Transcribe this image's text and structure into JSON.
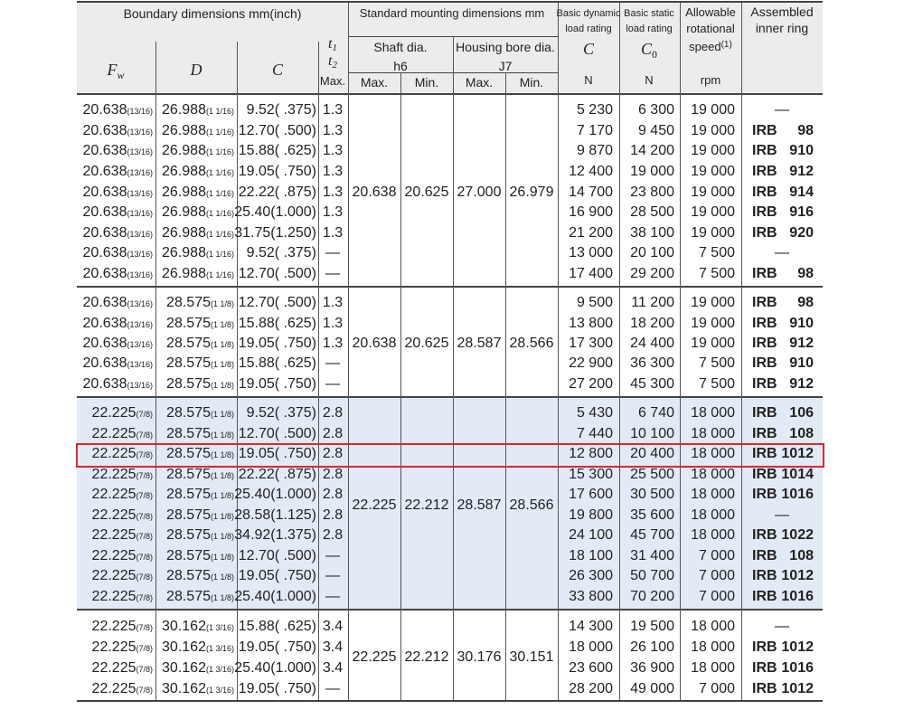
{
  "header": {
    "boundary": "Boundary dimensions   mm(inch)",
    "fw": "F",
    "fw_sub": "w",
    "d": "D",
    "c": "C",
    "t1": "t",
    "t1_sub": "1",
    "t2": "t",
    "t2_sub": "2",
    "t_max": "Max.",
    "mounting": "Standard mounting dimensions   mm",
    "shaft": "Shaft dia.",
    "shaft_tol": "h6",
    "housing": "Housing bore dia.",
    "housing_tol": "J7",
    "shaft_max": "Max.",
    "shaft_min": "Min.",
    "housing_max": "Max.",
    "housing_min": "Min.",
    "dyn": [
      "Basic dynamic",
      "load rating"
    ],
    "dyn_symbol": "C",
    "dyn_unit": "N",
    "stat": [
      "Basic static",
      "load rating"
    ],
    "stat_symbol": "C",
    "stat_sub": "0",
    "stat_unit": "N",
    "speed": [
      "Allowable",
      "rotational",
      "speed"
    ],
    "speed_note": "(1)",
    "speed_unit": "rpm",
    "ring": [
      "Assembled",
      "inner ring"
    ]
  },
  "groups": [
    {
      "mount": [
        "20.638",
        "20.625",
        "27.000",
        "26.979"
      ],
      "rows": [
        [
          "20.638",
          "(13/16)",
          "26.988",
          "(1 1/16)",
          "9.52( .375)",
          "1.3",
          "5 230",
          "6 300",
          "19 000",
          "—"
        ],
        [
          "20.638",
          "(13/16)",
          "26.988",
          "(1 1/16)",
          "12.70( .500)",
          "1.3",
          "7 170",
          "9 450",
          "19 000",
          [
            "IRB",
            "98"
          ]
        ],
        [
          "20.638",
          "(13/16)",
          "26.988",
          "(1 1/16)",
          "15.88( .625)",
          "1.3",
          "9 870",
          "14 200",
          "19 000",
          [
            "IRB",
            "910"
          ]
        ],
        [
          "20.638",
          "(13/16)",
          "26.988",
          "(1 1/16)",
          "19.05( .750)",
          "1.3",
          "12 400",
          "19 000",
          "19 000",
          [
            "IRB",
            "912"
          ]
        ],
        [
          "20.638",
          "(13/16)",
          "26.988",
          "(1 1/16)",
          "22.22( .875)",
          "1.3",
          "14 700",
          "23 800",
          "19 000",
          [
            "IRB",
            "914"
          ]
        ],
        [
          "20.638",
          "(13/16)",
          "26.988",
          "(1 1/16)",
          "25.40(1.000)",
          "1.3",
          "16 900",
          "28 500",
          "19 000",
          [
            "IRB",
            "916"
          ]
        ],
        [
          "20.638",
          "(13/16)",
          "26.988",
          "(1 1/16)",
          "31.75(1.250)",
          "1.3",
          "21 200",
          "38 100",
          "19 000",
          [
            "IRB",
            "920"
          ]
        ],
        [
          "20.638",
          "(13/16)",
          "26.988",
          "(1 1/16)",
          "9.52( .375)",
          "—",
          "13 000",
          "20 100",
          "7 500",
          "—"
        ],
        [
          "20.638",
          "(13/16)",
          "26.988",
          "(1 1/16)",
          "12.70( .500)",
          "—",
          "17 400",
          "29 200",
          "7 500",
          [
            "IRB",
            "98"
          ]
        ]
      ]
    },
    {
      "mount": [
        "20.638",
        "20.625",
        "28.587",
        "28.566"
      ],
      "rows": [
        [
          "20.638",
          "(13/16)",
          "28.575",
          "(1 1/8)",
          "12.70( .500)",
          "1.3",
          "9 500",
          "11 200",
          "19 000",
          [
            "IRB",
            "98"
          ]
        ],
        [
          "20.638",
          "(13/16)",
          "28.575",
          "(1 1/8)",
          "15.88( .625)",
          "1.3",
          "13 800",
          "18 200",
          "19 000",
          [
            "IRB",
            "910"
          ]
        ],
        [
          "20.638",
          "(13/16)",
          "28.575",
          "(1 1/8)",
          "19.05( .750)",
          "1.3",
          "17 300",
          "24 400",
          "19 000",
          [
            "IRB",
            "912"
          ]
        ],
        [
          "20.638",
          "(13/16)",
          "28.575",
          "(1 1/8)",
          "15.88( .625)",
          "—",
          "22 900",
          "36 300",
          "7 500",
          [
            "IRB",
            "910"
          ]
        ],
        [
          "20.638",
          "(13/16)",
          "28.575",
          "(1 1/8)",
          "19.05( .750)",
          "—",
          "27 200",
          "45 300",
          "7 500",
          [
            "IRB",
            "912"
          ]
        ]
      ]
    },
    {
      "mount": [
        "22.225",
        "22.212",
        "28.587",
        "28.566"
      ],
      "rows": [
        [
          "22.225",
          "(7/8)",
          "28.575",
          "(1 1/8)",
          "9.52( .375)",
          "2.8",
          "5 430",
          "6 740",
          "18 000",
          [
            "IRB",
            "106"
          ]
        ],
        [
          "22.225",
          "(7/8)",
          "28.575",
          "(1 1/8)",
          "12.70( .500)",
          "2.8",
          "7 440",
          "10 100",
          "18 000",
          [
            "IRB",
            "108"
          ]
        ],
        [
          "22.225",
          "(7/8)",
          "28.575",
          "(1 1/8)",
          "19.05( .750)",
          "2.8",
          "12 800",
          "20 400",
          "18 000",
          [
            "IRB",
            "1012"
          ]
        ],
        [
          "22.225",
          "(7/8)",
          "28.575",
          "(1 1/8)",
          "22.22( .875)",
          "2.8",
          "15 300",
          "25 500",
          "18 000",
          [
            "IRB",
            "1014"
          ]
        ],
        [
          "22.225",
          "(7/8)",
          "28.575",
          "(1 1/8)",
          "25.40(1.000)",
          "2.8",
          "17 600",
          "30 500",
          "18 000",
          [
            "IRB",
            "1016"
          ]
        ],
        [
          "22.225",
          "(7/8)",
          "28.575",
          "(1 1/8)",
          "28.58(1.125)",
          "2.8",
          "19 800",
          "35 600",
          "18 000",
          "—"
        ],
        [
          "22.225",
          "(7/8)",
          "28.575",
          "(1 1/8)",
          "34.92(1.375)",
          "2.8",
          "24 100",
          "45 700",
          "18 000",
          [
            "IRB",
            "1022"
          ]
        ],
        [
          "22.225",
          "(7/8)",
          "28.575",
          "(1 1/8)",
          "12.70( .500)",
          "—",
          "18 100",
          "31 400",
          "7 000",
          [
            "IRB",
            "108"
          ]
        ],
        [
          "22.225",
          "(7/8)",
          "28.575",
          "(1 1/8)",
          "19.05( .750)",
          "—",
          "26 300",
          "50 700",
          "7 000",
          [
            "IRB",
            "1012"
          ]
        ],
        [
          "22.225",
          "(7/8)",
          "28.575",
          "(1 1/8)",
          "25.40(1.000)",
          "—",
          "33 800",
          "70 200",
          "7 000",
          [
            "IRB",
            "1016"
          ]
        ]
      ]
    },
    {
      "mount": [
        "22.225",
        "22.212",
        "30.176",
        "30.151"
      ],
      "rows": [
        [
          "22.225",
          "(7/8)",
          "30.162",
          "(1 3/16)",
          "15.88( .625)",
          "3.4",
          "14 300",
          "19 500",
          "18 000",
          "—"
        ],
        [
          "22.225",
          "(7/8)",
          "30.162",
          "(1 3/16)",
          "19.05( .750)",
          "3.4",
          "18 000",
          "26 100",
          "18 000",
          [
            "IRB",
            "1012"
          ]
        ],
        [
          "22.225",
          "(7/8)",
          "30.162",
          "(1 3/16)",
          "25.40(1.000)",
          "3.4",
          "23 600",
          "36 900",
          "18 000",
          [
            "IRB",
            "1016"
          ]
        ],
        [
          "22.225",
          "(7/8)",
          "30.162",
          "(1 3/16)",
          "19.05( .750)",
          "—",
          "28 200",
          "49 000",
          "7 000",
          [
            "IRB",
            "1012"
          ]
        ]
      ]
    }
  ]
}
